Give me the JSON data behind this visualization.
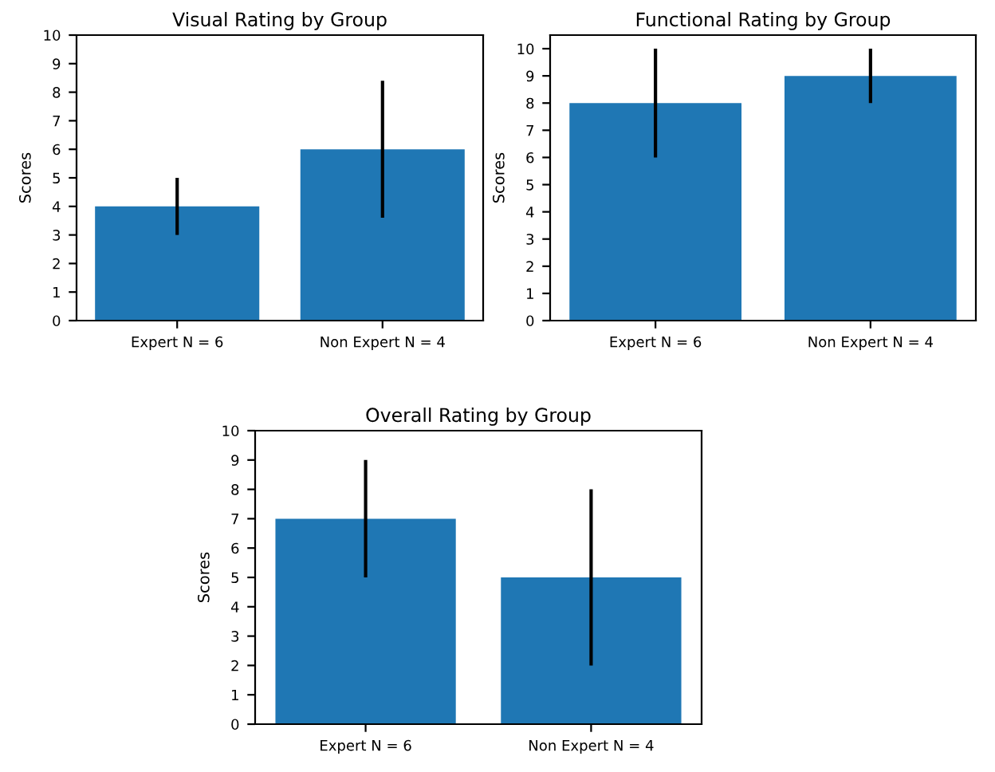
{
  "chart_data": [
    {
      "type": "bar",
      "title": "Visual Rating by Group",
      "ylabel": "Scores",
      "categories": [
        "Expert N = 6",
        "Non Expert N = 4"
      ],
      "values": [
        4,
        6
      ],
      "errors": [
        1,
        2.4
      ],
      "color": "#1f77b4",
      "ylim": [
        0,
        10
      ],
      "yticks": [
        0,
        1,
        2,
        3,
        4,
        5,
        6,
        7,
        8,
        9,
        10
      ],
      "grid": false
    },
    {
      "type": "bar",
      "title": "Functional Rating by Group",
      "ylabel": "Scores",
      "categories": [
        "Expert N = 6",
        "Non Expert N = 4"
      ],
      "values": [
        8,
        9
      ],
      "errors": [
        2,
        1
      ],
      "color": "#1f77b4",
      "ylim": [
        0,
        10.5
      ],
      "yticks": [
        0,
        1,
        2,
        3,
        4,
        5,
        6,
        7,
        8,
        9,
        10
      ],
      "grid": false
    },
    {
      "type": "bar",
      "title": "Overall Rating by Group",
      "ylabel": "Scores",
      "categories": [
        "Expert N = 6",
        "Non Expert N = 4"
      ],
      "values": [
        7,
        5
      ],
      "errors": [
        2,
        3
      ],
      "color": "#1f77b4",
      "ylim": [
        0,
        10
      ],
      "yticks": [
        0,
        1,
        2,
        3,
        4,
        5,
        6,
        7,
        8,
        9,
        10
      ],
      "grid": false
    }
  ]
}
